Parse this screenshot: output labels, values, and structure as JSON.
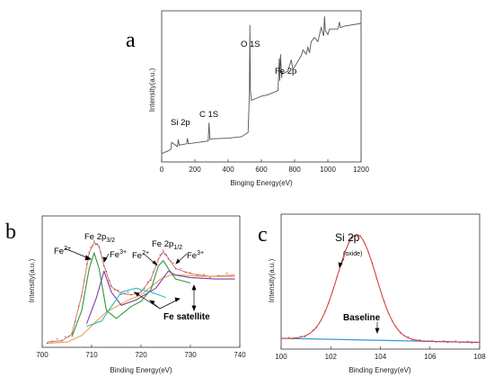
{
  "panels": {
    "a": "a",
    "b": "b",
    "c": "c"
  },
  "chart_data": [
    {
      "type": "line",
      "panel": "a",
      "xlabel": "Binging Energy(eV)",
      "ylabel": "Intensity(a.u.)",
      "xlim": [
        0,
        1200
      ],
      "xticks": [
        "0",
        "200",
        "400",
        "600",
        "800",
        "1000",
        "1200"
      ],
      "annotations": {
        "si": "Si 2p",
        "c": "C 1S",
        "o": "O 1S",
        "fe": "Fe 2p"
      },
      "color": "#555555",
      "x": [
        0,
        40,
        55,
        60,
        95,
        100,
        105,
        150,
        155,
        160,
        280,
        285,
        290,
        300,
        400,
        480,
        520,
        528,
        531,
        534,
        540,
        560,
        600,
        640,
        700,
        708,
        711,
        715,
        722,
        725,
        730,
        760,
        780,
        790,
        840,
        850,
        870,
        880,
        890,
        900,
        920,
        940,
        960,
        975,
        980,
        985,
        1000,
        1010,
        1060,
        1070,
        1075,
        1100,
        1200
      ],
      "y": [
        2,
        4,
        5,
        10,
        7,
        12,
        8,
        9,
        13,
        9,
        11,
        24,
        12,
        12.5,
        13,
        14,
        17,
        45,
        94,
        47,
        40,
        41,
        43,
        44,
        47,
        70,
        54,
        73,
        56,
        60,
        59,
        61,
        69,
        62,
        72,
        76,
        73,
        78,
        74,
        82,
        85,
        82,
        92,
        86,
        100,
        90,
        87,
        91,
        91,
        96,
        92,
        93,
        95
      ]
    },
    {
      "type": "line",
      "panel": "b",
      "xlabel": "Binding Energy(eV)",
      "ylabel": "Intensity(a.u.)",
      "xlim": [
        700,
        740
      ],
      "xticks": [
        "700",
        "710",
        "720",
        "730",
        "740"
      ],
      "annotations": {
        "fe2a": "Fe2+",
        "fe2p32": "Fe 2p3/2",
        "fe3a": "Fe3+",
        "fe2b": "Fe2+",
        "fe2p12": "Fe 2p1/2",
        "fe3b": "Fe3+",
        "sat": "Fe satellite"
      },
      "series": [
        {
          "color": "#e87878",
          "x": [
            701,
            704,
            706,
            708,
            709.5,
            710.5,
            711.5,
            712.5,
            714,
            716,
            718,
            720,
            722,
            723.5,
            724.5,
            725.5,
            727,
            730,
            734,
            739
          ],
          "y": [
            4,
            5,
            10,
            40,
            72,
            80,
            77,
            62,
            46,
            41,
            40,
            42,
            52,
            67,
            73,
            68,
            60,
            56,
            54,
            55
          ]
        },
        {
          "color": "#f0a050",
          "x": [
            701,
            705,
            708,
            711,
            713,
            716,
            718,
            720,
            722,
            724,
            726,
            728,
            732,
            736,
            739
          ],
          "y": [
            3,
            4,
            9,
            20,
            27,
            33,
            37,
            40,
            46,
            52,
            55,
            55,
            54,
            54,
            54
          ]
        },
        {
          "color": "#2f9a3a",
          "x": [
            706,
            708,
            709.5,
            710.5,
            711.5,
            713,
            715,
            718,
            720,
            722,
            723.5,
            724.5,
            725.5,
            727,
            730
          ],
          "y": [
            8,
            28,
            60,
            72,
            60,
            28,
            22,
            31,
            35,
            44,
            62,
            66,
            60,
            52,
            49
          ]
        },
        {
          "color": "#7e3fa0",
          "x": [
            709,
            711,
            712.5,
            714,
            716,
            719,
            723,
            725.5,
            727,
            730,
            735,
            739
          ],
          "y": [
            18,
            38,
            58,
            42,
            32,
            36,
            45,
            58,
            55,
            53,
            52,
            52
          ]
        },
        {
          "color": "#30b8c0",
          "x": [
            709,
            712,
            714,
            716,
            719,
            722,
            725
          ],
          "y": [
            16,
            20,
            31,
            42,
            45,
            42,
            38
          ]
        }
      ]
    },
    {
      "type": "line",
      "panel": "c",
      "xlabel": "Binding Energy(eV)",
      "ylabel": "Intensity(a.u.)",
      "xlim": [
        100,
        108
      ],
      "xticks": [
        "100",
        "102",
        "104",
        "106",
        "108"
      ],
      "annotations": {
        "title": "Si 2p",
        "sub": "(oxide)",
        "base": "Baseline"
      },
      "series": [
        {
          "name": "Baseline",
          "color": "#3399dd",
          "x": [
            100,
            108
          ],
          "y": [
            8,
            5
          ]
        },
        {
          "color": "#d94040",
          "gauss": {
            "center": 103.05,
            "sigma": 0.78,
            "amp": 78
          },
          "baseline": [
            8,
            5
          ]
        }
      ]
    }
  ]
}
